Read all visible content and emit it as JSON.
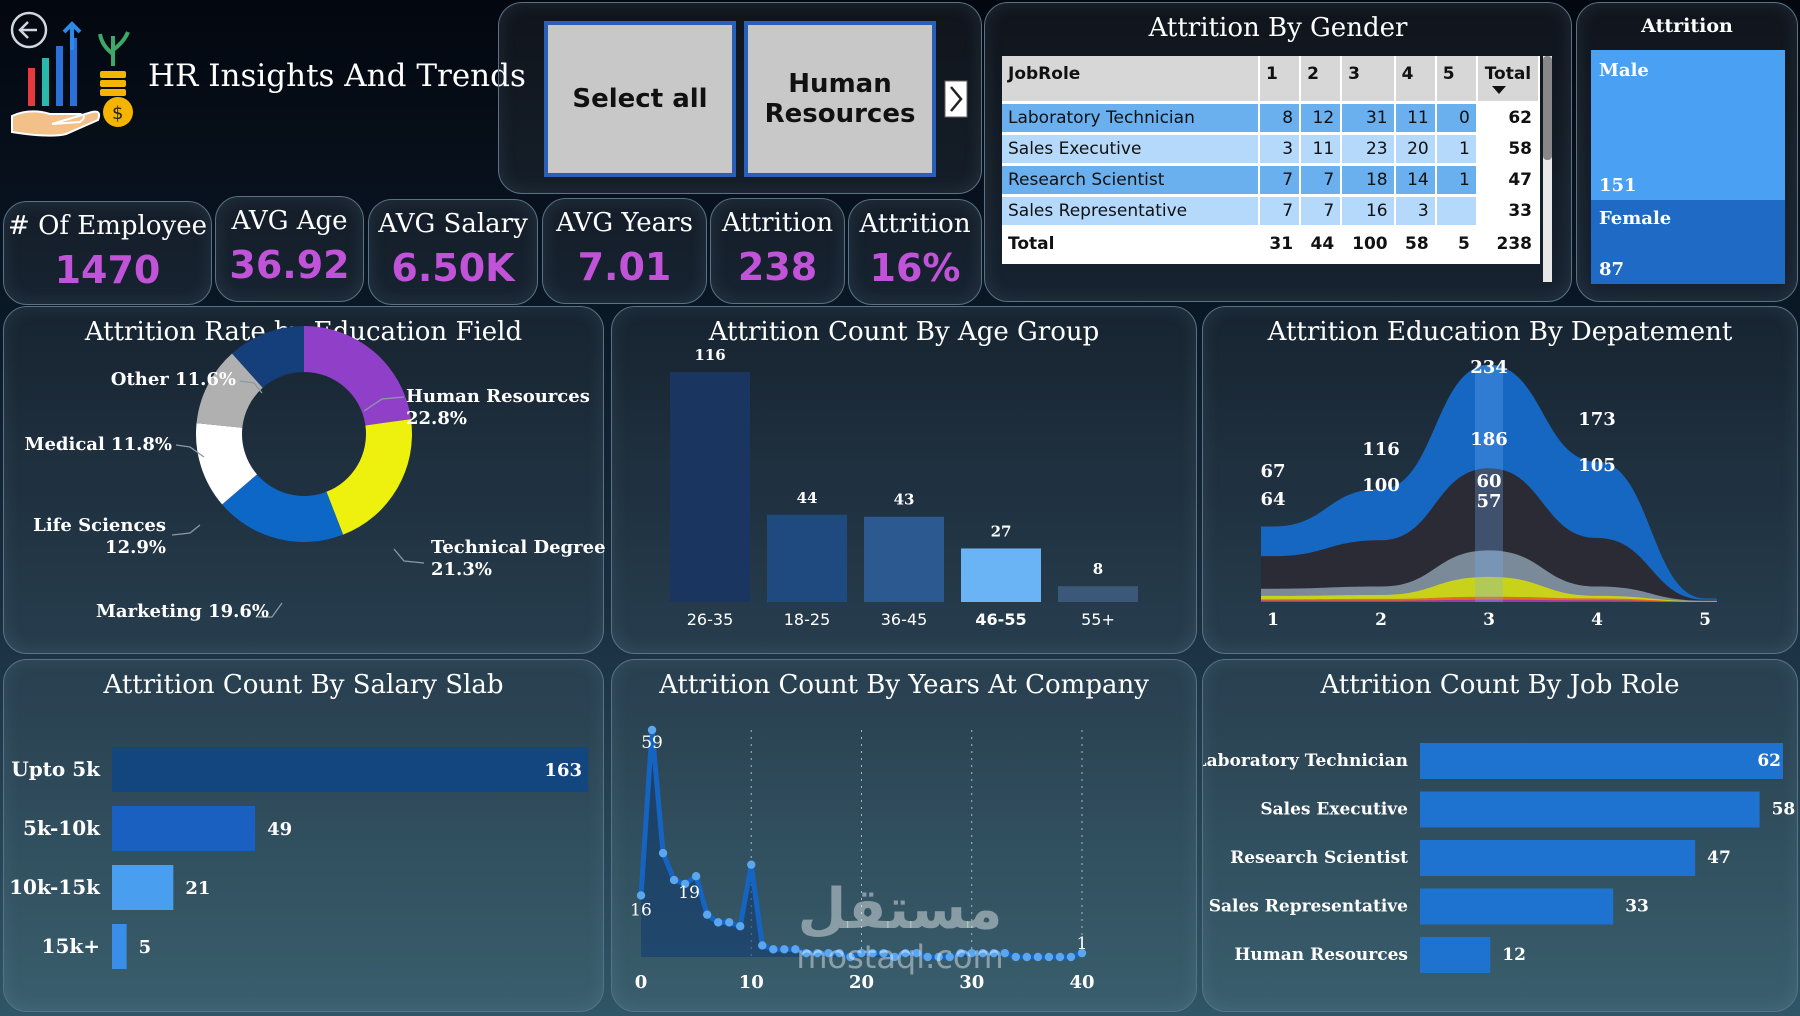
{
  "header": {
    "title": "HR Insights And Trends"
  },
  "slicer": {
    "select_all": "Select all",
    "department": "Human Resources"
  },
  "kpis": [
    {
      "label": "# Of Employee",
      "value": "1470"
    },
    {
      "label": "AVG Age",
      "value": "36.92"
    },
    {
      "label": "AVG Salary",
      "value": "6.50K"
    },
    {
      "label": "AVG Years",
      "value": "7.01"
    },
    {
      "label": "Attrition",
      "value": "238"
    },
    {
      "label": "Attrition",
      "value": "16%"
    }
  ],
  "gender_table": {
    "title": "Attrition By Gender",
    "headers": [
      "JobRole",
      "1",
      "2",
      "3",
      "4",
      "5",
      "Total"
    ],
    "rows": [
      {
        "role": "Laboratory Technician",
        "vals": [
          "8",
          "12",
          "31",
          "11",
          "0"
        ],
        "total": "62"
      },
      {
        "role": "Sales Executive",
        "vals": [
          "3",
          "11",
          "23",
          "20",
          "1"
        ],
        "total": "58"
      },
      {
        "role": "Research Scientist",
        "vals": [
          "7",
          "7",
          "18",
          "14",
          "1"
        ],
        "total": "47"
      },
      {
        "role": "Sales Representative",
        "vals": [
          "7",
          "7",
          "16",
          "3",
          ""
        ],
        "total": "33"
      }
    ],
    "total_row": {
      "label": "Total",
      "vals": [
        "31",
        "44",
        "100",
        "58",
        "5"
      ],
      "total": "238"
    }
  },
  "attrition_gender": {
    "title": "Attrition",
    "male_label": "Male",
    "male_value": "151",
    "female_label": "Female",
    "female_value": "87",
    "colors": {
      "male": "#4aa0f2",
      "female": "#1f6ac4"
    }
  },
  "education_donut": {
    "title": "Attrition Rate by Education Field",
    "slices": [
      {
        "name": "Human Resources",
        "pct": 22.8,
        "label": "Human Resources",
        "pct_label": "22.8%",
        "color": "#9040c8"
      },
      {
        "name": "Technical Degree",
        "pct": 21.3,
        "label": "Technical Degree",
        "pct_label": "21.3%",
        "color": "#eef00e"
      },
      {
        "name": "Marketing",
        "pct": 19.6,
        "label": "Marketing 19.6%",
        "color": "#0c67c6"
      },
      {
        "name": "Life Sciences",
        "pct": 12.9,
        "label": "Life Sciences",
        "pct_label": "12.9%",
        "color": "#ffffff"
      },
      {
        "name": "Medical",
        "pct": 11.8,
        "label": "Medical 11.8%",
        "color": "#b0b0b0"
      },
      {
        "name": "Other",
        "pct": 11.6,
        "label": "Other 11.6%",
        "color": "#143f7a"
      }
    ]
  },
  "age_chart": {
    "title": "Attrition Count By Age Group",
    "chart_data": {
      "type": "bar",
      "categories": [
        "26-35",
        "18-25",
        "36-45",
        "46-55",
        "55+"
      ],
      "values": [
        116,
        44,
        43,
        27,
        8
      ],
      "ylim": [
        0,
        116
      ]
    },
    "colors": [
      "#1a3560",
      "#1f4a80",
      "#2c5a90",
      "#6ab4f5",
      "#3b5878"
    ]
  },
  "dept_chart": {
    "title": "Attrition Education By Depatement",
    "chart_data": {
      "type": "area",
      "x": [
        1,
        2,
        3,
        4,
        5
      ],
      "series": [
        {
          "values": [
            67,
            116,
            234,
            173,
            null
          ]
        },
        {
          "values": [
            64,
            100,
            186,
            105,
            null
          ]
        },
        {
          "values": [
            null,
            null,
            60,
            null,
            null
          ]
        },
        {
          "values": [
            null,
            null,
            57,
            null,
            null
          ]
        }
      ]
    },
    "colors": [
      "#1667c2",
      "#2b2b35",
      "#7a8a99",
      "#c8d21a",
      "#e06d1a",
      "#9a3ab0"
    ]
  },
  "salary_chart": {
    "title": "Attrition Count By Salary Slab",
    "chart_data": {
      "type": "bar",
      "categories": [
        "Upto 5k",
        "5k-10k",
        "10k-15k",
        "15k+"
      ],
      "values": [
        163,
        49,
        21,
        5
      ]
    },
    "colors": [
      "#13457f",
      "#1a60c0",
      "#4a9ef0",
      "#3a8ee8"
    ]
  },
  "years_chart": {
    "title": "Attrition Count By Years At Company",
    "chart_data": {
      "type": "line",
      "x": [
        0,
        1,
        2,
        3,
        4,
        5,
        6,
        7,
        8,
        9,
        10,
        11,
        12,
        13,
        14,
        15,
        16,
        17,
        18,
        19,
        20,
        21,
        22,
        23,
        24,
        25,
        26,
        27,
        28,
        29,
        30,
        31,
        32,
        33,
        34,
        35,
        36,
        37,
        38,
        39,
        40
      ],
      "values": [
        16,
        59,
        27,
        20,
        19,
        21,
        11,
        9,
        9,
        8,
        24,
        3,
        2,
        2,
        2,
        1,
        1,
        1,
        1,
        0,
        1,
        1,
        1,
        0,
        1,
        1,
        0,
        0,
        0,
        1,
        1,
        1,
        1,
        1,
        0,
        0,
        0,
        0,
        0,
        0,
        1
      ],
      "xlim": [
        0,
        40
      ],
      "ylim": [
        0,
        59
      ]
    },
    "ticks": [
      "0",
      "10",
      "20",
      "30",
      "40"
    ],
    "point_labels": [
      {
        "i": 1,
        "text": "59"
      },
      {
        "i": 0,
        "text": "16"
      },
      {
        "i": 4,
        "text": "19"
      },
      {
        "i": 40,
        "text": "1"
      }
    ],
    "colors": {
      "line": "#1664c2",
      "area": "#0e3a70",
      "dot": "#5aa7f0"
    }
  },
  "jobrole_chart": {
    "title": "Attrition Count By Job Role",
    "chart_data": {
      "type": "bar",
      "categories": [
        "Laboratory Technician",
        "Sales Executive",
        "Research Scientist",
        "Sales Representative",
        "Human Resources"
      ],
      "values": [
        62,
        58,
        47,
        33,
        12
      ]
    },
    "color": "#1f73d0"
  },
  "watermark": {
    "arabic": "مستقل",
    "latin": "mostaql.com"
  }
}
